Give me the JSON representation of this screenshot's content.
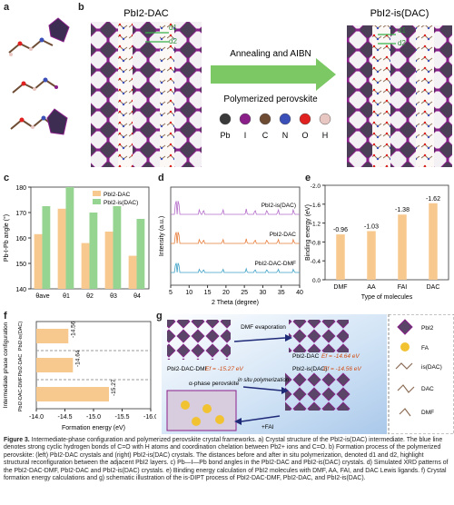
{
  "panels": {
    "a": "a",
    "b": "b",
    "c": "c",
    "d": "d",
    "e": "e",
    "f": "f",
    "g": "g"
  },
  "panel_b": {
    "left_title": "PbI2-DAC",
    "right_title": "PbI2-is(DAC)",
    "arrow_text_1": "Annealing and AIBN",
    "arrow_text_2": "Polymerized perovskite",
    "d1": "d1",
    "d2": "d2",
    "d1r": "d1",
    "d2r": "d2",
    "legend": [
      {
        "label": "Pb",
        "color": "#3a3a3a"
      },
      {
        "label": "I",
        "color": "#8a1f8a"
      },
      {
        "label": "C",
        "color": "#6d4c33"
      },
      {
        "label": "N",
        "color": "#3b4fb8"
      },
      {
        "label": "O",
        "color": "#e0211f"
      },
      {
        "label": "H",
        "color": "#e8c7c2"
      }
    ]
  },
  "chart_data": [
    {
      "type": "bar",
      "ylabel": "Pb-I-Pb angle (°)",
      "ylim": [
        140,
        180
      ],
      "yticks": [
        "140",
        "150",
        "160",
        "170",
        "180"
      ],
      "categories": [
        "θave",
        "θ1",
        "θ2",
        "θ3",
        "θ4"
      ],
      "series": [
        {
          "name": "PbI2-DAC",
          "color": "#f8c98f",
          "values": [
            161.5,
            171.5,
            158,
            162.5,
            153
          ]
        },
        {
          "name": "PbI2-is(DAC)",
          "color": "#96d491",
          "values": [
            172.5,
            180,
            170,
            172.5,
            167.5
          ]
        }
      ]
    },
    {
      "type": "line",
      "xlabel": "2 Theta (degree)",
      "ylabel": "Intensity (a.u.)",
      "xlim": [
        5,
        40
      ],
      "xticks": [
        "5",
        "10",
        "15",
        "20",
        "25",
        "30",
        "35",
        "40"
      ],
      "series": [
        {
          "name": "PbI2-is(DAC)",
          "color": "#b46cc9"
        },
        {
          "name": "PbI2-DAC",
          "color": "#e77c3a"
        },
        {
          "name": "PbI2-DAC-DMF",
          "color": "#3ca0c6"
        }
      ]
    },
    {
      "type": "bar",
      "xlabel": "Type of molecules",
      "ylabel": "Binding energy (eV)",
      "ylim": [
        0,
        -2.0
      ],
      "yticks": [
        "0.0",
        "-0.4",
        "-0.8",
        "-1.2",
        "-1.6",
        "-2.0"
      ],
      "categories": [
        "DMF",
        "AA",
        "FAI",
        "DAC"
      ],
      "values": [
        -0.96,
        -1.03,
        -1.38,
        -1.62
      ],
      "value_labels": [
        "-0.96",
        "-1.03",
        "-1.38",
        "-1.62"
      ],
      "color": "#f8c98f"
    },
    {
      "type": "bar",
      "xlabel": "Formation energy (eV)",
      "ylabel": "Intermediate phase configuration",
      "xlim": [
        -14.0,
        -16.0
      ],
      "xticks": [
        "-14.0",
        "-14.5",
        "-15.0",
        "-15.5",
        "-16.0"
      ],
      "categories": [
        "PbI2-is(DAC)",
        "PbI2-DAC",
        "PbI2-DAC-DMF"
      ],
      "values": [
        -14.56,
        -14.64,
        -15.27
      ],
      "value_labels": [
        "-14.56",
        "-14.64",
        "-15.27"
      ],
      "color": "#f8c98f"
    }
  ],
  "panel_g": {
    "dmf_evap": "DMF evaporation",
    "dac_label": "PbI2-DAC",
    "dac_ef": "Ef = -14.64 eV",
    "dmf_label": "PbI2-DAC-DMF",
    "dmf_ef": "Ef = -15.27 eV",
    "insitu": "in situ polymerization",
    "isdac_label": "PbI2-is(DAC)",
    "isdac_ef": "Ef = -14.56 eV",
    "alpha": "α-phase perovskite",
    "fai": "+FAI",
    "legend": [
      "PbI2",
      "FA",
      "is(DAC)",
      "DAC",
      "DMF"
    ]
  },
  "caption": {
    "fig": "Figure 3.",
    "text": " Intermediate-phase configuration and polymerized perovskite crystal frameworks. a) Crystal structure of the PbI2-is(DAC) intermediate. The blue line denotes strong cyclic hydrogen bonds of C=O with H atoms and coordination chelation between Pb2+ ions and C=O. b) Formation process of the polymerized perovskite: (left) PbI2-DAC crystals and (right) PbI2-is(DAC) crystals. The distances before and after in situ polymerization, denoted d1 and d2, highlight structural reconfiguration between the adjacent PbI2 layers. c) Pb—I—Pb bond angles in the PbI2-DAC and PbI2-is(DAC) crystals. d) Simulated XRD patterns of the PbI2-DAC-DMF, PbI2-DAC and PbI2-is(DAC) crystals. e) Binding energy calculation of PbI2 molecules with DMF, AA, FAI, and DAC Lewis ligands. f) Crystal formation energy calculations and g) schematic illustration of the is-DIPT process of PbI2-DAC-DMF, PbI2-DAC, and PbI2-is(DAC)."
  }
}
